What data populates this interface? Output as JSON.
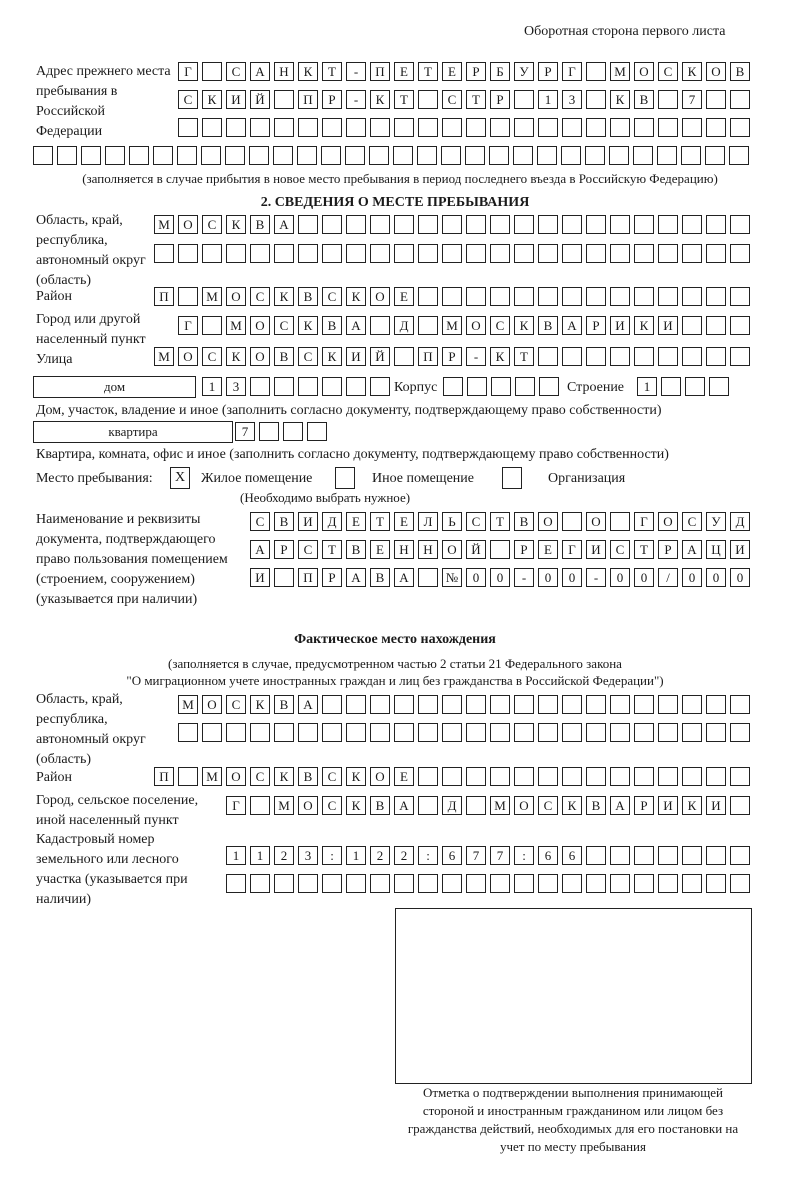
{
  "header": {
    "side_note": "Оборотная сторона первого листа"
  },
  "prev_address": {
    "label": "Адрес прежнего места пребывания в Российской Федерации",
    "rows": [
      [
        "Г",
        "",
        "С",
        "А",
        "Н",
        "К",
        "Т",
        "-",
        "П",
        "Е",
        "Т",
        "Е",
        "Р",
        "Б",
        "У",
        "Р",
        "Г",
        "",
        "М",
        "О",
        "С",
        "К",
        "О",
        "В"
      ],
      [
        "С",
        "К",
        "И",
        "Й",
        "",
        "П",
        "Р",
        "-",
        "К",
        "Т",
        "",
        "С",
        "Т",
        "Р",
        "",
        "1",
        "3",
        "",
        "К",
        "В",
        "",
        "7",
        "",
        ""
      ],
      [
        "",
        "",
        "",
        "",
        "",
        "",
        "",
        "",
        "",
        "",
        "",
        "",
        "",
        "",
        "",
        "",
        "",
        "",
        "",
        "",
        "",
        "",
        "",
        ""
      ],
      [
        "",
        "",
        "",
        "",
        "",
        "",
        "",
        "",
        "",
        "",
        "",
        "",
        "",
        "",
        "",
        "",
        "",
        "",
        "",
        "",
        "",
        "",
        "",
        "",
        "",
        "",
        "",
        "",
        "",
        ""
      ]
    ],
    "note": "(заполняется в случае прибытия в новое место пребывания в период последнего въезда в Российскую Федерацию)"
  },
  "section2": {
    "title": "2. СВЕДЕНИЯ О МЕСТЕ ПРЕБЫВАНИЯ",
    "region_label": "Область, край, республика, автономный округ (область)",
    "region_rows": [
      [
        "М",
        "О",
        "С",
        "К",
        "В",
        "А",
        "",
        "",
        "",
        "",
        "",
        "",
        "",
        "",
        "",
        "",
        "",
        "",
        "",
        "",
        "",
        "",
        "",
        "",
        ""
      ],
      [
        "",
        "",
        "",
        "",
        "",
        "",
        "",
        "",
        "",
        "",
        "",
        "",
        "",
        "",
        "",
        "",
        "",
        "",
        "",
        "",
        "",
        "",
        "",
        "",
        ""
      ]
    ],
    "district_label": "Район",
    "district_row": [
      "П",
      "",
      "М",
      "О",
      "С",
      "К",
      "В",
      "С",
      "К",
      "О",
      "Е",
      "",
      "",
      "",
      "",
      "",
      "",
      "",
      "",
      "",
      "",
      "",
      "",
      "",
      ""
    ],
    "city_label": "Город или другой населенный пункт",
    "city_row": [
      "Г",
      "",
      "М",
      "О",
      "С",
      "К",
      "В",
      "А",
      "",
      "Д",
      "",
      "М",
      "О",
      "С",
      "К",
      "В",
      "А",
      "Р",
      "И",
      "К",
      "И",
      "",
      "",
      ""
    ],
    "street_label": "Улица",
    "street_row": [
      "М",
      "О",
      "С",
      "К",
      "О",
      "В",
      "С",
      "К",
      "И",
      "Й",
      "",
      "П",
      "Р",
      "-",
      "К",
      "Т",
      "",
      "",
      "",
      "",
      "",
      "",
      "",
      "",
      ""
    ],
    "house_type": "дом",
    "house_cells": [
      "1",
      "3",
      "",
      "",
      "",
      "",
      "",
      ""
    ],
    "corpus_label": "Корпус",
    "corpus_cells": [
      "",
      "",
      "",
      "",
      ""
    ],
    "building_label": "Строение",
    "building_cells": [
      "1",
      "",
      "",
      ""
    ],
    "house_note": "Дом, участок, владение и иное (заполнить согласно документу, подтверждающему право собственности)",
    "flat_type": "квартира",
    "flat_cells": [
      "7",
      "",
      "",
      ""
    ],
    "flat_note": "Квартира, комната, офис и иное (заполнить согласно документу, подтверждающему право собственности)",
    "stay_label": "Место пребывания:",
    "options": [
      {
        "label": "Жилое помещение",
        "checked": true,
        "mark": "X"
      },
      {
        "label": "Иное помещение",
        "checked": false,
        "mark": ""
      },
      {
        "label": "Организация",
        "checked": false,
        "mark": ""
      }
    ],
    "choose_note": "(Необходимо выбрать нужное)",
    "doc_label": "Наименование и реквизиты документа, подтверждающего право пользования помещением (строением, сооружением) (указывается при наличии)",
    "doc_rows": [
      [
        "С",
        "В",
        "И",
        "Д",
        "Е",
        "Т",
        "Е",
        "Л",
        "Ь",
        "С",
        "Т",
        "В",
        "О",
        "",
        "О",
        "",
        "Г",
        "О",
        "С",
        "У",
        "Д"
      ],
      [
        "А",
        "Р",
        "С",
        "Т",
        "В",
        "Е",
        "Н",
        "Н",
        "О",
        "Й",
        "",
        "Р",
        "Е",
        "Г",
        "И",
        "С",
        "Т",
        "Р",
        "А",
        "Ц",
        "И"
      ],
      [
        "И",
        "",
        "П",
        "Р",
        "А",
        "В",
        "А",
        "",
        "№",
        "0",
        "0",
        "-",
        "0",
        "0",
        "-",
        "0",
        "0",
        "/",
        "0",
        "0",
        "0"
      ]
    ]
  },
  "actual": {
    "title": "Фактическое место нахождения",
    "note_line1": "(заполняется в случае, предусмотренном частью 2 статьи 21 Федерального закона",
    "note_line2": "\"О миграционном учете иностранных граждан и лиц без гражданства в Российской Федерации\")",
    "region_label": "Область, край, республика, автономный округ (область)",
    "region_rows": [
      [
        "М",
        "О",
        "С",
        "К",
        "В",
        "А",
        "",
        "",
        "",
        "",
        "",
        "",
        "",
        "",
        "",
        "",
        "",
        "",
        "",
        "",
        "",
        "",
        "",
        ""
      ],
      [
        "",
        "",
        "",
        "",
        "",
        "",
        "",
        "",
        "",
        "",
        "",
        "",
        "",
        "",
        "",
        "",
        "",
        "",
        "",
        "",
        "",
        "",
        "",
        ""
      ]
    ],
    "district_label": "Район",
    "district_row": [
      "П",
      "",
      "М",
      "О",
      "С",
      "К",
      "В",
      "С",
      "К",
      "О",
      "Е",
      "",
      "",
      "",
      "",
      "",
      "",
      "",
      "",
      "",
      "",
      "",
      "",
      "",
      ""
    ],
    "city_label": "Город, сельское поселение, иной населенный пункт",
    "city_row": [
      "Г",
      "",
      "М",
      "О",
      "С",
      "К",
      "В",
      "А",
      "",
      "Д",
      "",
      "М",
      "О",
      "С",
      "К",
      "В",
      "А",
      "Р",
      "И",
      "К",
      "И",
      ""
    ],
    "cadastral_label": "Кадастровый номер земельного или лесного участка (указывается при наличии)",
    "cadastral_rows": [
      [
        "1",
        "1",
        "2",
        "3",
        ":",
        "1",
        "2",
        "2",
        ":",
        "6",
        "7",
        "7",
        ":",
        "6",
        "6",
        "",
        "",
        "",
        "",
        "",
        "",
        ""
      ],
      [
        "",
        "",
        "",
        "",
        "",
        "",
        "",
        "",
        "",
        "",
        "",
        "",
        "",
        "",
        "",
        "",
        "",
        "",
        "",
        "",
        "",
        ""
      ]
    ]
  },
  "stamp": {
    "caption": "Отметка о подтверждении выполнения принимающей стороной и иностранным гражданином или лицом без гражданства действий, необходимых для его постановки на учет по месту пребывания"
  }
}
